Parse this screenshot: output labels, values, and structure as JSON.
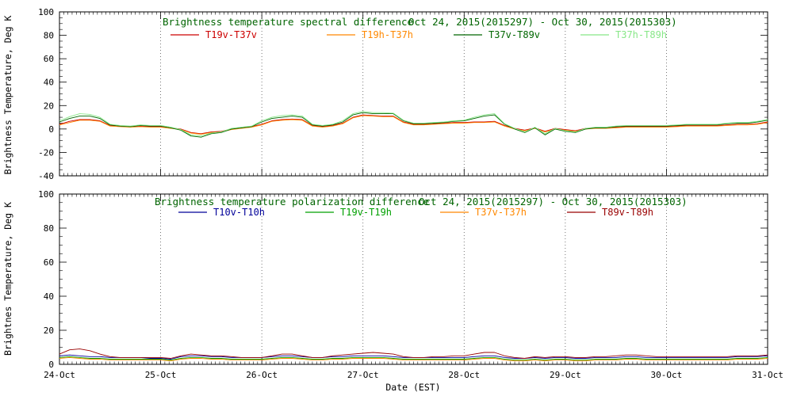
{
  "title_colors": {
    "top": "#006400",
    "bottom": "#006400"
  },
  "chart_data": [
    {
      "type": "line",
      "title": "Brightness temperature spectral difference",
      "date_range": "Oct 24, 2015(2015297) - Oct 30, 2015(2015303)",
      "title_color": "#006400",
      "ylabel": "Brightness Temperature, Deg K",
      "ylim": [
        -40,
        100
      ],
      "yticks": [
        -40,
        -20,
        0,
        20,
        40,
        60,
        80,
        100
      ],
      "xlim": [
        0,
        7
      ],
      "grid": "vertical-dotted-daily",
      "legend_position": "top-inside",
      "x": [
        0,
        0.1,
        0.2,
        0.3,
        0.4,
        0.5,
        0.6,
        0.7,
        0.8,
        0.9,
        1,
        1.1,
        1.2,
        1.3,
        1.4,
        1.5,
        1.6,
        1.7,
        1.8,
        1.9,
        2,
        2.1,
        2.2,
        2.3,
        2.4,
        2.5,
        2.6,
        2.7,
        2.8,
        2.9,
        3,
        3.1,
        3.2,
        3.3,
        3.4,
        3.5,
        3.6,
        3.7,
        3.8,
        3.9,
        4,
        4.1,
        4.2,
        4.3,
        4.4,
        4.5,
        4.6,
        4.7,
        4.8,
        4.9,
        5,
        5.1,
        5.2,
        5.3,
        5.4,
        5.5,
        5.6,
        5.7,
        5.8,
        5.9,
        6,
        6.1,
        6.2,
        6.3,
        6.4,
        6.5,
        6.6,
        6.7,
        6.8,
        6.9,
        7
      ],
      "series": [
        {
          "name": "T19v-T37v",
          "color": "#CC0000",
          "values": [
            4,
            6.5,
            8,
            8,
            7,
            3,
            2.5,
            2,
            2.5,
            2,
            2,
            1,
            0,
            -3,
            -4,
            -2.5,
            -2,
            0,
            1,
            2,
            4,
            7,
            8,
            8.5,
            8,
            3,
            2,
            3,
            5,
            10,
            12,
            11.5,
            11,
            11,
            6,
            4,
            4,
            4.5,
            5,
            5.5,
            5.5,
            6,
            6,
            6.5,
            3,
            0.5,
            -1,
            1,
            -2,
            0.5,
            -0.5,
            -1.5,
            0.5,
            1,
            1,
            1.5,
            2,
            2,
            2,
            2,
            2,
            2.5,
            3,
            3,
            3,
            3,
            3.5,
            4,
            4,
            4.5,
            6
          ]
        },
        {
          "name": "T19h-T37h",
          "color": "#FF8800",
          "values": [
            3.5,
            5.5,
            7.5,
            7.5,
            6.5,
            2.5,
            2,
            1.5,
            2,
            1.5,
            1.5,
            0.5,
            -0.5,
            -3.5,
            -4.5,
            -3,
            -2.5,
            -0.5,
            0.5,
            1.5,
            3.5,
            6.5,
            7.5,
            8,
            7.5,
            2.5,
            1.5,
            2.5,
            4.5,
            9.5,
            11.5,
            11,
            10.5,
            10.5,
            5.5,
            3.5,
            3.5,
            4,
            4.5,
            5,
            5,
            5.5,
            5.5,
            6,
            2.5,
            0,
            -1.5,
            0.5,
            -2.5,
            0,
            -1,
            -2,
            0,
            0.5,
            0.5,
            1,
            1.5,
            1.5,
            1.5,
            1.5,
            1.5,
            2,
            2.5,
            2.5,
            2.5,
            2.5,
            3,
            3.5,
            3.5,
            4,
            5.5
          ]
        },
        {
          "name": "T37v-T89v",
          "color": "#006600",
          "values": [
            6,
            9,
            11,
            11,
            9,
            3.5,
            2.5,
            2,
            3,
            2.5,
            2.5,
            1,
            -1,
            -6,
            -7,
            -4,
            -3,
            0,
            1,
            2,
            6,
            9,
            10,
            11,
            10,
            3.5,
            2.5,
            3.5,
            6,
            12,
            14,
            13,
            13,
            13,
            7,
            4.5,
            4.5,
            5,
            5.5,
            6.5,
            7,
            9,
            11,
            12,
            4,
            0,
            -3,
            1,
            -5,
            0,
            -2,
            -3,
            0,
            1,
            1,
            2,
            2.5,
            2.5,
            2.5,
            2.5,
            2.5,
            3,
            3.5,
            3.5,
            3.5,
            3.5,
            4.5,
            5,
            5,
            6,
            7.5
          ]
        },
        {
          "name": "T37h-T89h",
          "color": "#88E788",
          "values": [
            7,
            10.5,
            13,
            12.5,
            10,
            4,
            3,
            2.5,
            3.5,
            3,
            3,
            1.5,
            -0.5,
            -5,
            -6,
            -3.5,
            -2.5,
            0.5,
            1.5,
            2.5,
            7,
            10,
            11.5,
            12,
            11,
            4,
            3,
            4,
            7,
            13,
            15,
            14,
            14,
            13.5,
            7.5,
            5,
            5,
            5.5,
            6,
            7,
            7.5,
            10,
            12,
            13,
            4.5,
            0.5,
            -2.5,
            1.5,
            -4,
            0.5,
            -1.5,
            -2.5,
            0.5,
            1.5,
            1.5,
            2.5,
            3,
            3,
            3,
            3,
            3,
            3.5,
            4,
            4,
            4,
            4,
            5,
            5.5,
            5.5,
            6.5,
            8
          ]
        }
      ]
    },
    {
      "type": "line",
      "title": "Brightness temperature polarization difference",
      "date_range": "Oct 24, 2015(2015297) - Oct 30, 2015(2015303)",
      "title_color": "#006400",
      "ylabel": "Brightnes Temperature, Deg K",
      "xlabel": "Date (EST)",
      "ylim": [
        0,
        100
      ],
      "yticks": [
        0,
        20,
        40,
        60,
        80,
        100
      ],
      "xlim": [
        0,
        7
      ],
      "grid": "vertical-dotted-daily",
      "legend_position": "top-inside",
      "xtick_labels": [
        "24-Oct",
        "25-Oct",
        "26-Oct",
        "27-Oct",
        "28-Oct",
        "29-Oct",
        "30-Oct",
        "31-Oct"
      ],
      "x": [
        0,
        0.1,
        0.2,
        0.3,
        0.4,
        0.5,
        0.6,
        0.7,
        0.8,
        0.9,
        1,
        1.1,
        1.2,
        1.3,
        1.4,
        1.5,
        1.6,
        1.7,
        1.8,
        1.9,
        2,
        2.1,
        2.2,
        2.3,
        2.4,
        2.5,
        2.6,
        2.7,
        2.8,
        2.9,
        3,
        3.1,
        3.2,
        3.3,
        3.4,
        3.5,
        3.6,
        3.7,
        3.8,
        3.9,
        4,
        4.1,
        4.2,
        4.3,
        4.4,
        4.5,
        4.6,
        4.7,
        4.8,
        4.9,
        5,
        5.1,
        5.2,
        5.3,
        5.4,
        5.5,
        5.6,
        5.7,
        5.8,
        5.9,
        6,
        6.1,
        6.2,
        6.3,
        6.4,
        6.5,
        6.6,
        6.7,
        6.8,
        6.9,
        7
      ],
      "series": [
        {
          "name": "T10v-T10h",
          "color": "#000099",
          "values": [
            5,
            5.5,
            5,
            4.5,
            4.5,
            4,
            4,
            4,
            4,
            3.5,
            3.5,
            3,
            4.5,
            5,
            5,
            4.5,
            4.5,
            4,
            4,
            4,
            4,
            4.5,
            5,
            5,
            4.5,
            4,
            4,
            4.5,
            4.5,
            5,
            5,
            5,
            5,
            4.5,
            4,
            4,
            4,
            4,
            4,
            4,
            4,
            4.5,
            5,
            5,
            4,
            3.5,
            3.5,
            4,
            3.5,
            4,
            4,
            3.5,
            3.5,
            4,
            4,
            4,
            4.5,
            4.5,
            4,
            4,
            4,
            4,
            4,
            4,
            4,
            4,
            4,
            4.5,
            4.5,
            4.5,
            5
          ]
        },
        {
          "name": "T19v-T19h",
          "color": "#00A000",
          "values": [
            4,
            4.5,
            4,
            3.5,
            3.5,
            3,
            3,
            3,
            3,
            3,
            3,
            2.5,
            3.5,
            4,
            4,
            3.5,
            3.5,
            3,
            3,
            3,
            3,
            3.5,
            4,
            4,
            3.5,
            3,
            3,
            3.5,
            3.5,
            4,
            4,
            4,
            4,
            3.5,
            3,
            3,
            3,
            3,
            3,
            3,
            3,
            3.5,
            4,
            4,
            3,
            2.5,
            2.5,
            3,
            2.5,
            3,
            3,
            2.5,
            2.5,
            3,
            3,
            3,
            3.5,
            3.5,
            3,
            3,
            3,
            3,
            3,
            3,
            3,
            3,
            3,
            3.5,
            3.5,
            3.5,
            4
          ]
        },
        {
          "name": "T37v-T37h",
          "color": "#FF8800",
          "values": [
            3.5,
            4,
            3.5,
            3,
            3,
            2.5,
            2.5,
            2.5,
            2.5,
            2.5,
            2.5,
            2,
            3,
            3.5,
            3.5,
            3,
            3,
            2.5,
            2.5,
            2.5,
            2.5,
            3,
            3.5,
            3.5,
            3,
            2.5,
            2.5,
            3,
            3,
            3.5,
            3.5,
            3.5,
            3.5,
            3,
            2.5,
            2.5,
            2.5,
            2.5,
            2.5,
            2.5,
            2.5,
            3,
            3.5,
            3.5,
            2.5,
            2,
            2,
            2.5,
            2,
            2.5,
            2.5,
            2,
            2,
            2.5,
            2.5,
            2.5,
            3,
            3,
            2.5,
            2.5,
            2.5,
            2.5,
            2.5,
            2.5,
            2.5,
            2.5,
            2.5,
            3,
            3,
            3,
            3.5
          ]
        },
        {
          "name": "T89v-T89h",
          "color": "#990000",
          "values": [
            6,
            8.5,
            9,
            8,
            6,
            4.5,
            4,
            4,
            4,
            4,
            4,
            3.5,
            5,
            6,
            5.5,
            5,
            5,
            4.5,
            4,
            4,
            4,
            5,
            6,
            6,
            5,
            4,
            4,
            5,
            5.5,
            6,
            6.5,
            7,
            6.5,
            6,
            4.5,
            4,
            4,
            4.5,
            4.5,
            5,
            5,
            6,
            7,
            7,
            5,
            4,
            3.5,
            4.5,
            4,
            4.5,
            4.5,
            4,
            4,
            4.5,
            4.5,
            5,
            5.5,
            5.5,
            5,
            4.5,
            4.5,
            4.5,
            4.5,
            4.5,
            4.5,
            4.5,
            4.5,
            5,
            5,
            5,
            5.5
          ]
        }
      ]
    }
  ]
}
